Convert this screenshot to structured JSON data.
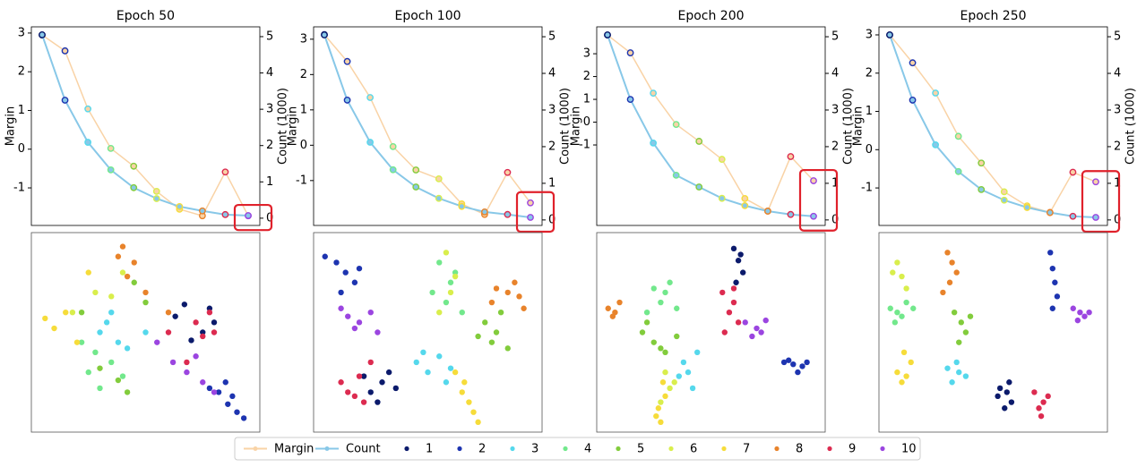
{
  "chart_data": [
    {
      "type": "line",
      "title": "Epoch 50",
      "ylabel": "Margin",
      "y2label": "Count (1000)",
      "categories": [
        null,
        null,
        null,
        null,
        null,
        null,
        null,
        null,
        null,
        null
      ],
      "series": [
        {
          "name": "Margin",
          "color": "#f9d3a6",
          "values": [
            2.95,
            2.54,
            1.04,
            0.02,
            -0.44,
            -1.09,
            -1.55,
            -1.72,
            -0.59,
            -1.72
          ]
        },
        {
          "name": "Count",
          "color": "#88c8e8",
          "axis": "y2",
          "values": [
            5.05,
            3.25,
            2.09,
            1.33,
            0.84,
            0.54,
            0.32,
            0.2,
            0.1,
            0.07
          ]
        }
      ],
      "ylim": [
        -1.97,
        3.16
      ],
      "yticks": [
        -1,
        0,
        1,
        2,
        3
      ],
      "y2lim": [
        -0.2,
        5.27
      ],
      "y2ticks": [
        0,
        1,
        2,
        3,
        4,
        5
      ]
    },
    {
      "type": "line",
      "title": "Epoch 100",
      "ylabel": "Margin",
      "y2label": "Count (1000)",
      "categories": [
        null,
        null,
        null,
        null,
        null,
        null,
        null,
        null,
        null,
        null
      ],
      "series": [
        {
          "values": [
            3.13,
            2.37,
            1.35,
            -0.04,
            -0.7,
            -0.95,
            -1.66,
            -1.96,
            -0.77,
            -1.63
          ]
        },
        {
          "axis": "y2",
          "values": [
            5.05,
            3.27,
            2.12,
            1.37,
            0.9,
            0.59,
            0.37,
            0.22,
            0.15,
            0.07
          ]
        }
      ],
      "ylim": [
        -2.27,
        3.35
      ],
      "yticks": [
        -1,
        0,
        1,
        2,
        3
      ],
      "y2lim": [
        -0.15,
        5.27
      ],
      "y2ticks": [
        0,
        1,
        2,
        3,
        4,
        5
      ]
    },
    {
      "type": "line",
      "title": "Epoch 200",
      "ylabel": "Margin",
      "y2label": "Count (1000)",
      "categories": [
        null,
        null,
        null,
        null,
        null,
        null,
        null,
        null,
        null,
        null
      ],
      "series": [
        {
          "values": [
            3.82,
            3.04,
            1.27,
            -0.1,
            -0.84,
            -1.63,
            -3.35,
            -3.9,
            -1.51,
            -2.57
          ]
        },
        {
          "axis": "y2",
          "values": [
            5.05,
            3.29,
            2.1,
            1.22,
            0.9,
            0.59,
            0.39,
            0.24,
            0.15,
            0.1
          ]
        }
      ],
      "ylim": [
        -4.53,
        4.18
      ],
      "yticks": [
        -1,
        0,
        1,
        2,
        3
      ],
      "y2lim": [
        -0.15,
        5.27
      ],
      "y2ticks": [
        0,
        1,
        2,
        3,
        4,
        5
      ]
    },
    {
      "type": "line",
      "title": "Epoch 250",
      "ylabel": "Margin",
      "y2label": "Count (1000)",
      "categories": [
        null,
        null,
        null,
        null,
        null,
        null,
        null,
        null,
        null,
        null
      ],
      "series": [
        {
          "values": [
            3.0,
            2.27,
            1.48,
            0.35,
            -0.35,
            -1.1,
            -1.47,
            -1.64,
            -0.59,
            -0.84
          ]
        },
        {
          "axis": "y2",
          "values": [
            5.05,
            3.27,
            2.05,
            1.32,
            0.83,
            0.54,
            0.34,
            0.2,
            0.1,
            0.07
          ]
        }
      ],
      "ylim": [
        -1.98,
        3.21
      ],
      "yticks": [
        -1,
        0,
        1,
        2,
        3
      ],
      "y2lim": [
        -0.15,
        5.27
      ],
      "y2ticks": [
        0,
        1,
        2,
        3,
        4,
        5
      ]
    },
    {
      "type": "scatter",
      "xlim": [
        0,
        1
      ],
      "ylim": [
        0,
        1
      ],
      "series": [
        {
          "name": "1",
          "color": "#0b1a6b",
          "x": [
            0.67,
            0.75,
            0.78,
            0.63,
            0.7,
            0.8
          ],
          "y": [
            0.64,
            0.5,
            0.62,
            0.58,
            0.46,
            0.55
          ]
        },
        {
          "name": "2",
          "color": "#1d34b0",
          "x": [
            0.82,
            0.86,
            0.9,
            0.88,
            0.93,
            0.78,
            0.85
          ],
          "y": [
            0.2,
            0.14,
            0.1,
            0.18,
            0.07,
            0.22,
            0.25
          ]
        },
        {
          "name": "3",
          "color": "#55d8ec",
          "x": [
            0.3,
            0.38,
            0.35,
            0.42,
            0.5,
            0.33
          ],
          "y": [
            0.5,
            0.45,
            0.6,
            0.42,
            0.5,
            0.55
          ]
        },
        {
          "name": "4",
          "color": "#72e88c",
          "x": [
            0.25,
            0.3,
            0.35,
            0.28,
            0.4,
            0.22
          ],
          "y": [
            0.3,
            0.22,
            0.35,
            0.4,
            0.28,
            0.45
          ]
        },
        {
          "name": "5",
          "color": "#82cc3c",
          "x": [
            0.3,
            0.38,
            0.22,
            0.45,
            0.5,
            0.42
          ],
          "y": [
            0.32,
            0.26,
            0.6,
            0.75,
            0.65,
            0.2
          ]
        },
        {
          "name": "6",
          "color": "#d9ee4c",
          "x": [
            0.28,
            0.35,
            0.18,
            0.4
          ],
          "y": [
            0.7,
            0.68,
            0.6,
            0.8
          ]
        },
        {
          "name": "7",
          "color": "#f6dc3a",
          "x": [
            0.06,
            0.1,
            0.15,
            0.25,
            0.2
          ],
          "y": [
            0.57,
            0.52,
            0.6,
            0.8,
            0.45
          ]
        },
        {
          "name": "8",
          "color": "#e8832b",
          "x": [
            0.4,
            0.45,
            0.42,
            0.5,
            0.38,
            0.6
          ],
          "y": [
            0.93,
            0.85,
            0.78,
            0.7,
            0.88,
            0.6
          ]
        },
        {
          "name": "9",
          "color": "#dc2b50",
          "x": [
            0.72,
            0.75,
            0.8,
            0.68,
            0.6,
            0.78
          ],
          "y": [
            0.55,
            0.48,
            0.5,
            0.35,
            0.5,
            0.6
          ]
        },
        {
          "name": "10",
          "color": "#9b45e0",
          "x": [
            0.62,
            0.68,
            0.75,
            0.72,
            0.55,
            0.8
          ],
          "y": [
            0.35,
            0.3,
            0.25,
            0.38,
            0.45,
            0.2
          ]
        }
      ]
    },
    {
      "type": "scatter",
      "xlim": [
        0,
        1
      ],
      "ylim": [
        0,
        1
      ],
      "series": [
        {
          "x": [
            0.25,
            0.3,
            0.33,
            0.28,
            0.22,
            0.36
          ],
          "y": [
            0.2,
            0.25,
            0.3,
            0.15,
            0.28,
            0.22
          ]
        },
        {
          "x": [
            0.05,
            0.1,
            0.14,
            0.18,
            0.12,
            0.2
          ],
          "y": [
            0.88,
            0.85,
            0.8,
            0.75,
            0.7,
            0.82
          ]
        },
        {
          "x": [
            0.45,
            0.5,
            0.55,
            0.6,
            0.48,
            0.58
          ],
          "y": [
            0.35,
            0.3,
            0.38,
            0.32,
            0.4,
            0.25
          ]
        },
        {
          "x": [
            0.55,
            0.6,
            0.58,
            0.62,
            0.52,
            0.65
          ],
          "y": [
            0.85,
            0.75,
            0.65,
            0.8,
            0.7,
            0.6
          ]
        },
        {
          "x": [
            0.75,
            0.8,
            0.78,
            0.82,
            0.72,
            0.85
          ],
          "y": [
            0.55,
            0.5,
            0.45,
            0.6,
            0.48,
            0.42
          ]
        },
        {
          "x": [
            0.58,
            0.6,
            0.55,
            0.62
          ],
          "y": [
            0.9,
            0.7,
            0.6,
            0.78
          ]
        },
        {
          "x": [
            0.65,
            0.68,
            0.7,
            0.72,
            0.66,
            0.62
          ],
          "y": [
            0.2,
            0.15,
            0.1,
            0.05,
            0.25,
            0.3
          ]
        },
        {
          "x": [
            0.8,
            0.85,
            0.9,
            0.88,
            0.78,
            0.92
          ],
          "y": [
            0.72,
            0.7,
            0.68,
            0.75,
            0.65,
            0.62
          ]
        },
        {
          "x": [
            0.12,
            0.15,
            0.18,
            0.2,
            0.25,
            0.22
          ],
          "y": [
            0.25,
            0.2,
            0.18,
            0.28,
            0.35,
            0.15
          ]
        },
        {
          "x": [
            0.12,
            0.15,
            0.2,
            0.25,
            0.18,
            0.28
          ],
          "y": [
            0.62,
            0.58,
            0.55,
            0.6,
            0.52,
            0.5
          ]
        }
      ]
    },
    {
      "type": "scatter",
      "xlim": [
        0,
        1
      ],
      "ylim": [
        0,
        1
      ],
      "series": [
        {
          "x": [
            0.6,
            0.62,
            0.64,
            0.61,
            0.63
          ],
          "y": [
            0.92,
            0.86,
            0.8,
            0.75,
            0.89
          ]
        },
        {
          "x": [
            0.82,
            0.86,
            0.9,
            0.84,
            0.88,
            0.92
          ],
          "y": [
            0.35,
            0.34,
            0.33,
            0.36,
            0.3,
            0.35
          ]
        },
        {
          "x": [
            0.4,
            0.42,
            0.38,
            0.44,
            0.36
          ],
          "y": [
            0.3,
            0.22,
            0.35,
            0.4,
            0.28
          ]
        },
        {
          "x": [
            0.25,
            0.3,
            0.28,
            0.32,
            0.22,
            0.35
          ],
          "y": [
            0.72,
            0.7,
            0.65,
            0.75,
            0.6,
            0.62
          ]
        },
        {
          "x": [
            0.2,
            0.25,
            0.3,
            0.22,
            0.35,
            0.28
          ],
          "y": [
            0.5,
            0.45,
            0.4,
            0.55,
            0.48,
            0.42
          ]
        },
        {
          "x": [
            0.3,
            0.32,
            0.28,
            0.34
          ],
          "y": [
            0.3,
            0.22,
            0.15,
            0.25
          ]
        },
        {
          "x": [
            0.27,
            0.28,
            0.3,
            0.26,
            0.29
          ],
          "y": [
            0.12,
            0.05,
            0.18,
            0.08,
            0.25
          ]
        },
        {
          "x": [
            0.05,
            0.08,
            0.1,
            0.07
          ],
          "y": [
            0.62,
            0.6,
            0.65,
            0.58
          ]
        },
        {
          "x": [
            0.55,
            0.6,
            0.58,
            0.62,
            0.56,
            0.6
          ],
          "y": [
            0.7,
            0.65,
            0.6,
            0.55,
            0.5,
            0.72
          ]
        },
        {
          "x": [
            0.65,
            0.7,
            0.72,
            0.68,
            0.74
          ],
          "y": [
            0.55,
            0.52,
            0.5,
            0.48,
            0.56
          ]
        }
      ]
    },
    {
      "type": "scatter",
      "xlim": [
        0,
        1
      ],
      "ylim": [
        0,
        1
      ],
      "series": [
        {
          "x": [
            0.53,
            0.56,
            0.58,
            0.55,
            0.52,
            0.57
          ],
          "y": [
            0.22,
            0.2,
            0.15,
            0.12,
            0.18,
            0.25
          ]
        },
        {
          "x": [
            0.75,
            0.76,
            0.77,
            0.78,
            0.76
          ],
          "y": [
            0.9,
            0.82,
            0.75,
            0.68,
            0.62
          ]
        },
        {
          "x": [
            0.3,
            0.35,
            0.32,
            0.38,
            0.34
          ],
          "y": [
            0.32,
            0.3,
            0.25,
            0.28,
            0.35
          ]
        },
        {
          "x": [
            0.05,
            0.08,
            0.12,
            0.1,
            0.15,
            0.07
          ],
          "y": [
            0.62,
            0.6,
            0.65,
            0.58,
            0.62,
            0.55
          ]
        },
        {
          "x": [
            0.33,
            0.36,
            0.38,
            0.4,
            0.35
          ],
          "y": [
            0.6,
            0.55,
            0.5,
            0.58,
            0.45
          ]
        },
        {
          "x": [
            0.08,
            0.1,
            0.12,
            0.06
          ],
          "y": [
            0.85,
            0.78,
            0.72,
            0.8
          ]
        },
        {
          "x": [
            0.08,
            0.1,
            0.12,
            0.14,
            0.11
          ],
          "y": [
            0.3,
            0.25,
            0.28,
            0.35,
            0.4
          ]
        },
        {
          "x": [
            0.3,
            0.32,
            0.34,
            0.31,
            0.28
          ],
          "y": [
            0.9,
            0.85,
            0.8,
            0.75,
            0.7
          ]
        },
        {
          "x": [
            0.68,
            0.72,
            0.7,
            0.74,
            0.71
          ],
          "y": [
            0.2,
            0.15,
            0.12,
            0.18,
            0.08
          ]
        },
        {
          "x": [
            0.85,
            0.88,
            0.9,
            0.87,
            0.92
          ],
          "y": [
            0.62,
            0.6,
            0.58,
            0.56,
            0.6
          ]
        }
      ]
    }
  ]
}
